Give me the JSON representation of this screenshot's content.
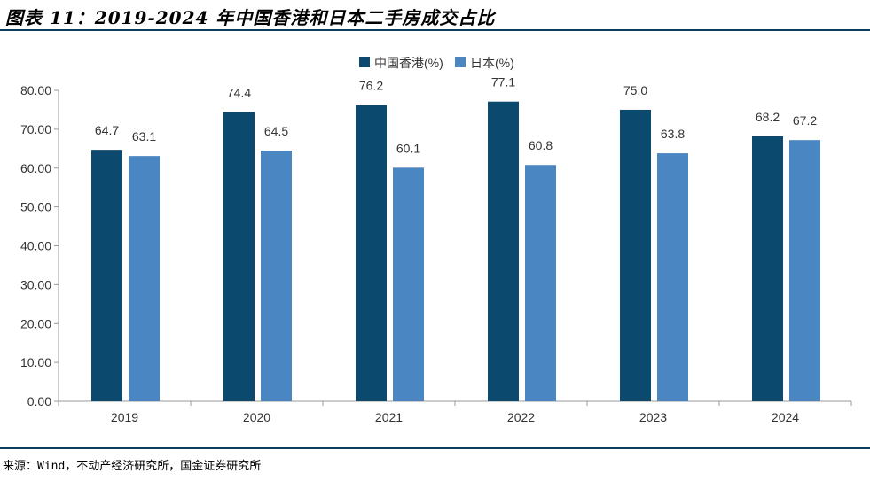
{
  "title": "图表 11：2019-2024 年中国香港和日本二手房成交占比",
  "source": "来源：Wind，不动产经济研究所，国金证券研究所",
  "chart_data": {
    "type": "bar",
    "title": "2019-2024 年中国香港和日本二手房成交占比",
    "categories": [
      "2019",
      "2020",
      "2021",
      "2022",
      "2023",
      "2024"
    ],
    "series": [
      {
        "name": "中国香港(%)",
        "color": "#0b4a6e",
        "values": [
          64.7,
          74.4,
          76.2,
          77.1,
          75.0,
          68.2
        ],
        "labels": [
          "64.7",
          "74.4",
          "76.2",
          "77.1",
          "75.0",
          "68.2"
        ]
      },
      {
        "name": "日本(%)",
        "color": "#4a86c1",
        "values": [
          63.1,
          64.5,
          60.1,
          60.8,
          63.8,
          67.2
        ],
        "labels": [
          "63.1",
          "64.5",
          "60.1",
          "60.8",
          "63.8",
          "67.2"
        ]
      }
    ],
    "ylim": [
      0,
      80
    ],
    "yticks": [
      "0.00",
      "10.00",
      "20.00",
      "30.00",
      "40.00",
      "50.00",
      "60.00",
      "70.00",
      "80.00"
    ],
    "grid": false,
    "legend": "top-center"
  }
}
